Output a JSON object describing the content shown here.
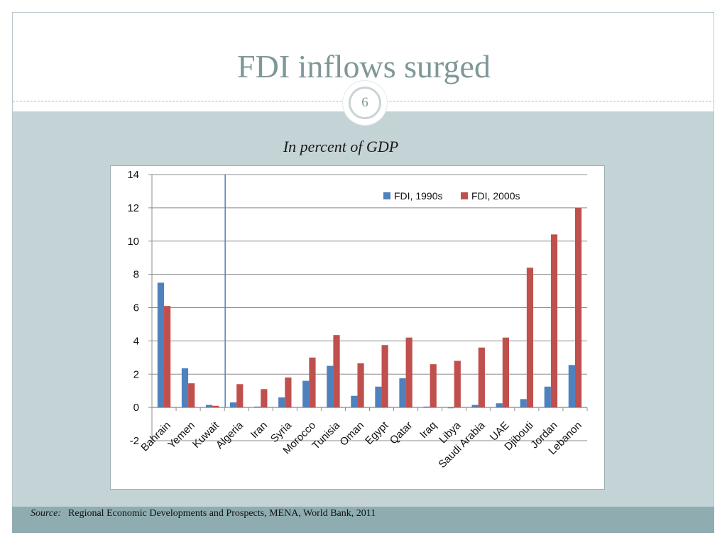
{
  "slide": {
    "title": "FDI inflows surged",
    "page_number": "6",
    "subtitle": "In percent of GDP"
  },
  "footer": {
    "source_label": "Source:",
    "source_text": "Regional Economic Developments and Prospects, MENA, World Bank, 2011"
  },
  "chart_data": {
    "type": "bar",
    "categories": [
      "Bahrain",
      "Yemen",
      "Kuwait",
      "Algeria",
      "Iran",
      "Syria",
      "Morocco",
      "Tunisia",
      "Oman",
      "Egypt",
      "Qatar",
      "Iraq",
      "Libya",
      "Saudi Arabia",
      "UAE",
      "Djibouti",
      "Jordan",
      "Lebanon"
    ],
    "series": [
      {
        "name": "FDI, 1990s",
        "color": "#4f81bd",
        "values": [
          7.5,
          2.35,
          0.15,
          0.3,
          0.05,
          0.6,
          1.6,
          2.5,
          0.7,
          1.25,
          1.75,
          0.05,
          -0.05,
          0.15,
          0.25,
          0.5,
          1.25,
          2.55
        ]
      },
      {
        "name": "FDI, 2000s",
        "color": "#c0504d",
        "values": [
          6.1,
          1.45,
          0.1,
          1.4,
          1.1,
          1.8,
          3.0,
          4.35,
          2.65,
          3.75,
          4.2,
          2.6,
          2.8,
          3.6,
          4.2,
          8.4,
          10.4,
          12.0
        ]
      }
    ],
    "ylim": [
      -2,
      14
    ],
    "yticks": [
      -2,
      0,
      2,
      4,
      6,
      8,
      10,
      12,
      14
    ],
    "grid": true,
    "legend_position": "top-right",
    "divider_after_category": "Kuwait"
  }
}
